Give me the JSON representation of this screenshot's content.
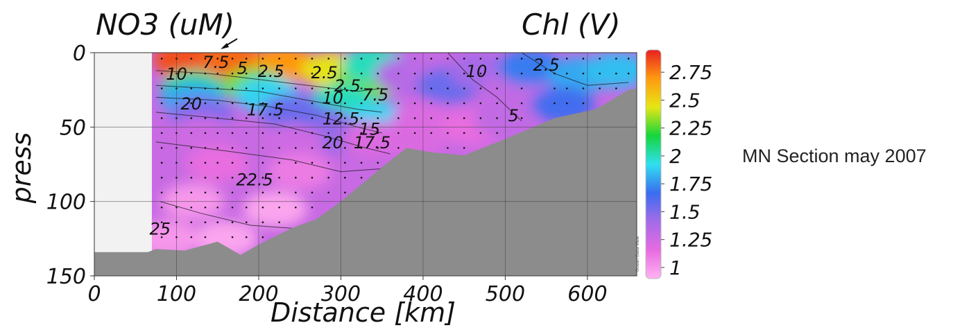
{
  "chart_data": {
    "type": "heatmap",
    "title_left": "NO3 (uM)",
    "title_right": "Chl (V)",
    "xlabel": "Distance [km]",
    "ylabel": "press",
    "side_label": "MN Section may 2007",
    "watermark": "Ocean Data View",
    "xlim": [
      0,
      660
    ],
    "ylim": [
      0,
      150
    ],
    "y_inverted": true,
    "x_ticks": [
      0,
      100,
      200,
      300,
      400,
      500,
      600
    ],
    "y_ticks": [
      0,
      50,
      100,
      150
    ],
    "grid": true,
    "colorbar": {
      "ticks": [
        1,
        1.25,
        1.5,
        1.75,
        2,
        2.25,
        2.5,
        2.75
      ],
      "tick_labels": [
        "1",
        "1.25",
        "1.5",
        "1.75",
        "2",
        "2.25",
        "2.5",
        "2.75"
      ],
      "range": [
        0.9,
        2.95
      ],
      "colors": [
        "#ffb3f2",
        "#e76be0",
        "#a36be8",
        "#3a6df0",
        "#2fe0f0",
        "#15d63c",
        "#e6e614",
        "#ff9a10",
        "#e82020"
      ]
    },
    "nodata_region": {
      "x_end_km": 70,
      "color": "#f2f2f2"
    },
    "bathymetry": [
      [
        0,
        134
      ],
      [
        65,
        134
      ],
      [
        75,
        132
      ],
      [
        110,
        133
      ],
      [
        130,
        130
      ],
      [
        150,
        127
      ],
      [
        178,
        136
      ],
      [
        200,
        129
      ],
      [
        240,
        118
      ],
      [
        270,
        112
      ],
      [
        300,
        100
      ],
      [
        350,
        77
      ],
      [
        380,
        64
      ],
      [
        410,
        67
      ],
      [
        450,
        69
      ],
      [
        500,
        58
      ],
      [
        560,
        44
      ],
      [
        610,
        38
      ],
      [
        650,
        25
      ],
      [
        660,
        24
      ]
    ],
    "nitrate_contours": [
      {
        "label": "2.5",
        "x": 215,
        "y": 12
      },
      {
        "label": "10",
        "x": 100,
        "y": 14
      },
      {
        "label": "7.5",
        "x": 148,
        "y": 6
      },
      {
        "label": "5",
        "x": 180,
        "y": 10
      },
      {
        "label": "2.5",
        "x": 280,
        "y": 13
      },
      {
        "label": "2.5",
        "x": 308,
        "y": 22
      },
      {
        "label": "10",
        "x": 290,
        "y": 30
      },
      {
        "label": "7.5",
        "x": 342,
        "y": 28
      },
      {
        "label": "20",
        "x": 118,
        "y": 34
      },
      {
        "label": "17.5",
        "x": 208,
        "y": 38
      },
      {
        "label": "12.5",
        "x": 300,
        "y": 44
      },
      {
        "label": "15",
        "x": 335,
        "y": 51
      },
      {
        "label": "17.5",
        "x": 338,
        "y": 60
      },
      {
        "label": "20",
        "x": 290,
        "y": 60
      },
      {
        "label": "22.5",
        "x": 195,
        "y": 85
      },
      {
        "label": "25",
        "x": 80,
        "y": 118
      },
      {
        "label": "10",
        "x": 465,
        "y": 12
      },
      {
        "label": "2.5",
        "x": 550,
        "y": 8
      },
      {
        "label": "5",
        "x": 510,
        "y": 42
      }
    ],
    "chl_blobs": [
      {
        "x": 110,
        "y": 5,
        "value": 2.85
      },
      {
        "x": 165,
        "y": 5,
        "value": 2.8
      },
      {
        "x": 230,
        "y": 8,
        "value": 2.7
      },
      {
        "x": 290,
        "y": 12,
        "value": 2.45
      },
      {
        "x": 330,
        "y": 20,
        "value": 2.3
      },
      {
        "x": 195,
        "y": 22,
        "value": 2.3
      },
      {
        "x": 120,
        "y": 24,
        "value": 2.05
      },
      {
        "x": 210,
        "y": 28,
        "value": 1.9
      },
      {
        "x": 300,
        "y": 33,
        "value": 2.0
      },
      {
        "x": 120,
        "y": 32,
        "value": 1.8
      },
      {
        "x": 340,
        "y": 8,
        "value": 2.0
      },
      {
        "x": 345,
        "y": 45,
        "value": 1.9
      },
      {
        "x": 240,
        "y": 40,
        "value": 1.55
      },
      {
        "x": 130,
        "y": 42,
        "value": 1.5
      },
      {
        "x": 275,
        "y": 48,
        "value": 1.55
      },
      {
        "x": 300,
        "y": 55,
        "value": 1.45
      },
      {
        "x": 130,
        "y": 55,
        "value": 1.25
      },
      {
        "x": 240,
        "y": 60,
        "value": 1.25
      },
      {
        "x": 340,
        "y": 58,
        "value": 1.2
      },
      {
        "x": 380,
        "y": 15,
        "value": 1.35
      },
      {
        "x": 420,
        "y": 15,
        "value": 1.3
      },
      {
        "x": 430,
        "y": 22,
        "value": 1.55
      },
      {
        "x": 470,
        "y": 12,
        "value": 1.4
      },
      {
        "x": 400,
        "y": 45,
        "value": 1.2
      },
      {
        "x": 460,
        "y": 50,
        "value": 1.15
      },
      {
        "x": 510,
        "y": 25,
        "value": 1.3
      },
      {
        "x": 500,
        "y": 45,
        "value": 1.3
      },
      {
        "x": 530,
        "y": 10,
        "value": 1.7
      },
      {
        "x": 590,
        "y": 15,
        "value": 1.8
      },
      {
        "x": 635,
        "y": 12,
        "value": 1.85
      },
      {
        "x": 570,
        "y": 35,
        "value": 1.65
      },
      {
        "x": 150,
        "y": 75,
        "value": 1.15
      },
      {
        "x": 250,
        "y": 80,
        "value": 1.1
      },
      {
        "x": 120,
        "y": 100,
        "value": 1.0
      },
      {
        "x": 220,
        "y": 105,
        "value": 0.95
      },
      {
        "x": 160,
        "y": 125,
        "value": 0.95
      },
      {
        "x": 90,
        "y": 125,
        "value": 1.0
      },
      {
        "x": 390,
        "y": 58,
        "value": 1.2
      }
    ],
    "sample_columns_km": [
      82,
      100,
      118,
      135,
      150,
      168,
      185,
      205,
      225,
      245,
      265,
      285,
      305,
      325,
      345,
      370,
      390,
      410,
      430,
      450,
      470,
      490,
      520,
      560,
      575,
      595,
      615,
      635,
      650
    ]
  }
}
